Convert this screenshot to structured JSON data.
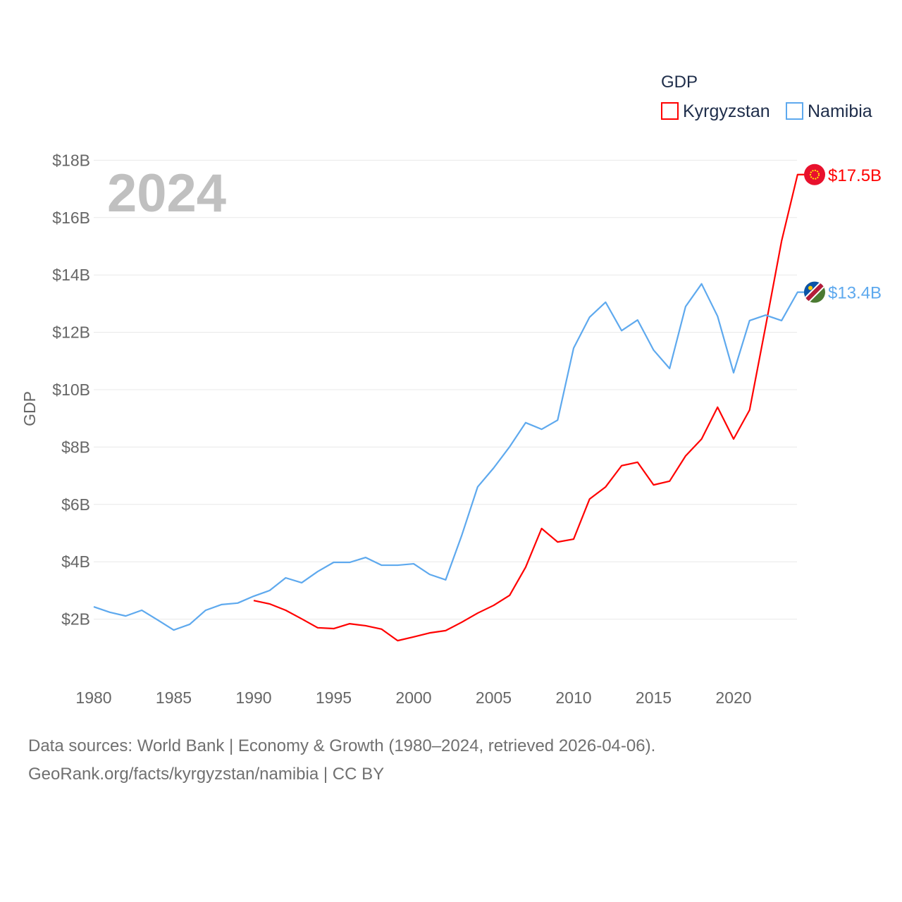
{
  "chart_data": {
    "type": "line",
    "title": "GDP",
    "year_label": "2024",
    "ylabel": "GDP",
    "xlabel": "",
    "xlim": [
      1980,
      2024
    ],
    "ylim": [
      0,
      18
    ],
    "x_ticks": [
      1980,
      1985,
      1990,
      1995,
      2000,
      2005,
      2010,
      2015,
      2020
    ],
    "y_ticks": [
      2,
      4,
      6,
      8,
      10,
      12,
      14,
      16,
      18
    ],
    "y_tick_labels": [
      "$2B",
      "$4B",
      "$6B",
      "$8B",
      "$10B",
      "$12B",
      "$14B",
      "$16B",
      "$18B"
    ],
    "grid": true,
    "legend_position": "top-right",
    "series": [
      {
        "name": "Kyrgyzstan",
        "color": "#ff0000",
        "end_label": "$17.5B",
        "flag": "kyrgyzstan-flag",
        "x": [
          1990,
          1991,
          1992,
          1993,
          1994,
          1995,
          1996,
          1997,
          1998,
          1999,
          2000,
          2001,
          2002,
          2003,
          2004,
          2005,
          2006,
          2007,
          2008,
          2009,
          2010,
          2011,
          2012,
          2013,
          2014,
          2015,
          2016,
          2017,
          2018,
          2019,
          2020,
          2021,
          2022,
          2023,
          2024
        ],
        "values": [
          2.65,
          2.53,
          2.31,
          2.01,
          1.7,
          1.67,
          1.84,
          1.77,
          1.65,
          1.25,
          1.38,
          1.52,
          1.6,
          1.89,
          2.21,
          2.48,
          2.83,
          3.81,
          5.16,
          4.69,
          4.79,
          6.19,
          6.61,
          7.35,
          7.47,
          6.68,
          6.81,
          7.69,
          8.28,
          9.39,
          8.28,
          9.29,
          12.2,
          15.18,
          17.5
        ]
      },
      {
        "name": "Namibia",
        "color": "#5ea9ee",
        "end_label": "$13.4B",
        "flag": "namibia-flag",
        "x": [
          1980,
          1981,
          1982,
          1983,
          1984,
          1985,
          1986,
          1987,
          1988,
          1989,
          1990,
          1991,
          1992,
          1993,
          1994,
          1995,
          1996,
          1997,
          1998,
          1999,
          2000,
          2001,
          2002,
          2003,
          2004,
          2005,
          2006,
          2007,
          2008,
          2009,
          2010,
          2011,
          2012,
          2013,
          2014,
          2015,
          2016,
          2017,
          2018,
          2019,
          2020,
          2021,
          2022,
          2023,
          2024
        ],
        "values": [
          2.43,
          2.24,
          2.11,
          2.31,
          1.97,
          1.62,
          1.82,
          2.31,
          2.51,
          2.56,
          2.8,
          3.0,
          3.44,
          3.27,
          3.66,
          3.98,
          3.98,
          4.15,
          3.88,
          3.88,
          3.93,
          3.56,
          3.37,
          4.91,
          6.61,
          7.27,
          8.01,
          8.85,
          8.62,
          8.94,
          11.45,
          12.53,
          13.05,
          12.06,
          12.43,
          11.38,
          10.74,
          12.9,
          13.69,
          12.56,
          10.59,
          12.41,
          12.6,
          12.41,
          13.4
        ]
      }
    ]
  },
  "footer": {
    "line1": "Data sources: World Bank | Economy & Growth (1980–2024, retrieved 2026-04-06).",
    "line2": "GeoRank.org/facts/kyrgyzstan/namibia | CC BY"
  }
}
